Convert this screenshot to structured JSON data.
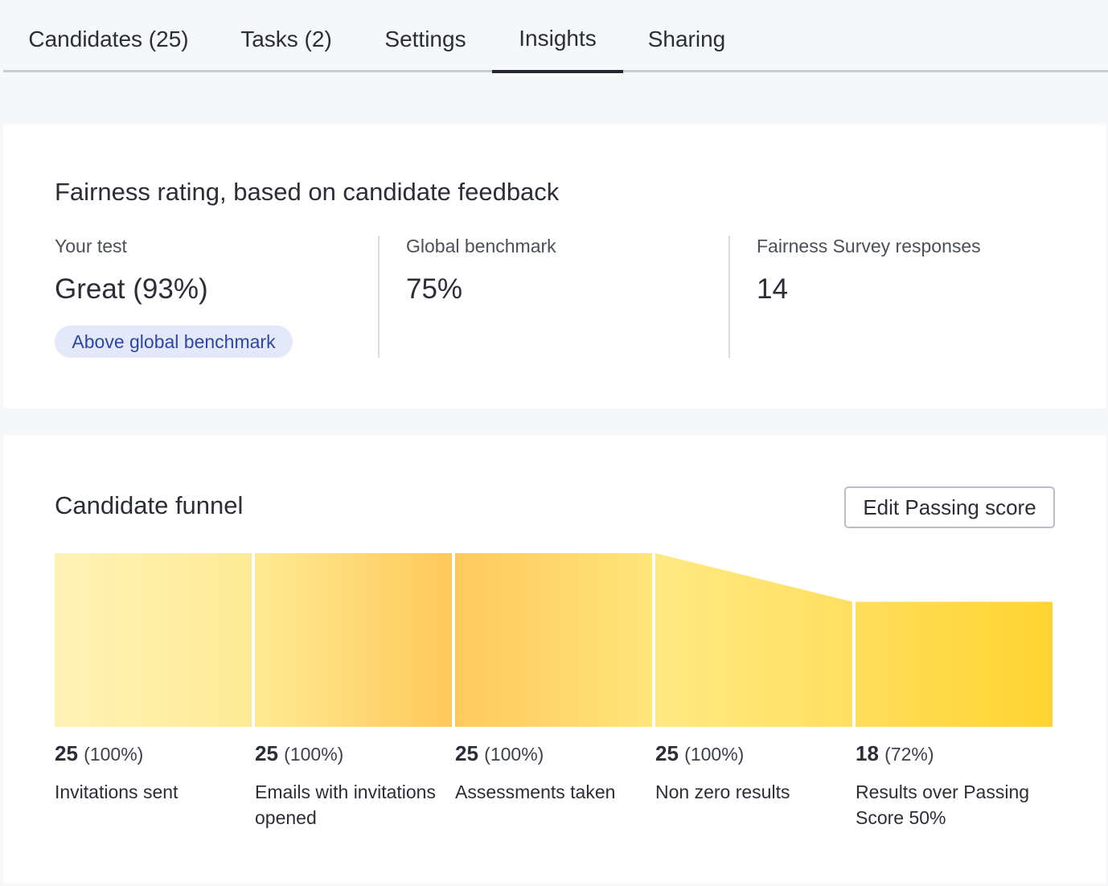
{
  "tabs": [
    {
      "label": "Candidates (25)",
      "active": false
    },
    {
      "label": "Tasks (2)",
      "active": false
    },
    {
      "label": "Settings",
      "active": false
    },
    {
      "label": "Insights",
      "active": true
    },
    {
      "label": "Sharing",
      "active": false
    }
  ],
  "fairness": {
    "title": "Fairness rating, based on candidate feedback",
    "your_test": {
      "label": "Your test",
      "value": "Great (93%)",
      "badge": "Above global benchmark"
    },
    "global_benchmark": {
      "label": "Global benchmark",
      "value": "75%"
    },
    "survey": {
      "label": "Fairness Survey responses",
      "value": "14"
    }
  },
  "funnel": {
    "title": "Candidate funnel",
    "edit_button": "Edit Passing score",
    "stages": [
      {
        "count": "25",
        "percent": "(100%)",
        "name": "Invitations sent",
        "ratio": 1.0
      },
      {
        "count": "25",
        "percent": "(100%)",
        "name": "Emails with invitations opened",
        "ratio": 1.0
      },
      {
        "count": "25",
        "percent": "(100%)",
        "name": "Assessments taken",
        "ratio": 1.0
      },
      {
        "count": "25",
        "percent": "(100%)",
        "name": "Non zero results",
        "ratio": 1.0
      },
      {
        "count": "18",
        "percent": "(72%)",
        "name": "Results over Passing Score 50%",
        "ratio": 0.72
      }
    ],
    "colors": {
      "light": "#fff2b3",
      "mid": "#ffe680",
      "orange": "#ffc95c",
      "yellow": "#ffd633"
    }
  }
}
